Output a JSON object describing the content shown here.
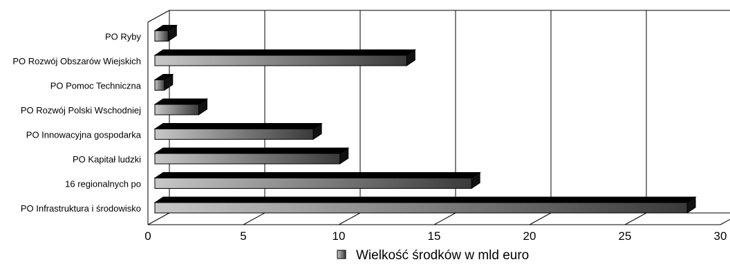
{
  "chart_data": {
    "type": "bar",
    "orientation": "horizontal",
    "style": "3d",
    "categories": [
      "PO Infrastruktura i środowisko",
      "16 regionalnych po",
      "PO Kapitał ludzki",
      "PO Innowacyjna gospodarka",
      "PO Rozwój Polski Wschodniej",
      "PO Pomoc Techniczna",
      "PO Rozwój Obszarów Wiejskich",
      "PO Ryby"
    ],
    "series": [
      {
        "name": "Wielkość środków w mld euro",
        "values": [
          27.9,
          16.6,
          9.7,
          8.3,
          2.3,
          0.5,
          13.2,
          0.7
        ]
      }
    ],
    "xlim": [
      0,
      30
    ],
    "xticks": [
      "0",
      "5",
      "10",
      "15",
      "20",
      "25",
      "30"
    ],
    "grid": "vertical",
    "legend_position": "bottom",
    "colors": {
      "bar_light": "#c8c8c8",
      "bar_dark": "#3a3a3a",
      "bar_top": "#000000",
      "axis": "#000000"
    }
  }
}
